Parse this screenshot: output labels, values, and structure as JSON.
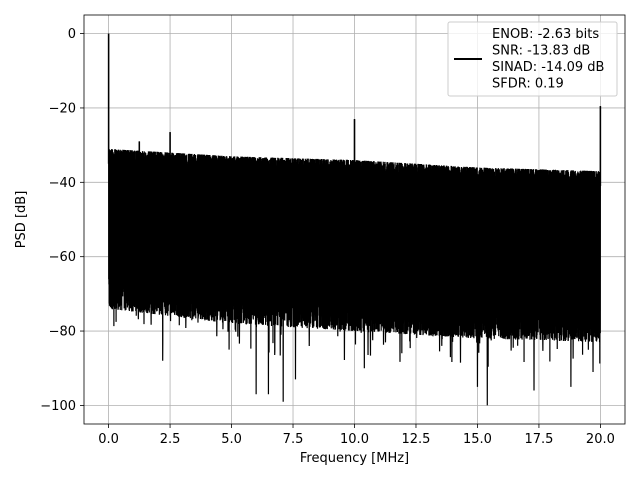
{
  "chart_data": {
    "type": "line",
    "xlabel": "Frequency [MHz]",
    "ylabel": "PSD [dB]",
    "xlim": [
      -1.0,
      21.0
    ],
    "ylim": [
      -105,
      5
    ],
    "xticks": [
      0.0,
      2.5,
      5.0,
      7.5,
      10.0,
      12.5,
      15.0,
      17.5,
      20.0
    ],
    "xtick_labels": [
      "0.0",
      "2.5",
      "5.0",
      "7.5",
      "10.0",
      "12.5",
      "15.0",
      "17.5",
      "20.0"
    ],
    "yticks": [
      0,
      -20,
      -40,
      -60,
      -80,
      -100
    ],
    "ytick_labels": [
      "0",
      "−20",
      "−40",
      "−60",
      "−80",
      "−100"
    ],
    "grid": true,
    "legend_position": "top-right",
    "legend": [
      "ENOB: -2.63 bits",
      "SNR: -13.83 dB",
      "SINAD: -14.09 dB",
      "SFDR: 0.19"
    ],
    "series": [
      {
        "color": "#000000",
        "noise_floor": {
          "x_range": [
            0.0,
            20.0
          ],
          "upper_envelope": [
            [
              0.0,
              -31
            ],
            [
              2.5,
              -32
            ],
            [
              5.0,
              -33
            ],
            [
              10.0,
              -34
            ],
            [
              15.0,
              -36
            ],
            [
              20.0,
              -37
            ]
          ],
          "lower_envelope": [
            [
              0.0,
              -72
            ],
            [
              5.0,
              -76
            ],
            [
              10.0,
              -78
            ],
            [
              15.0,
              -80
            ],
            [
              20.0,
              -81
            ]
          ],
          "deep_dips": [
            [
              2.2,
              -88
            ],
            [
              4.9,
              -85
            ],
            [
              6.0,
              -97
            ],
            [
              6.5,
              -97
            ],
            [
              7.1,
              -99
            ],
            [
              7.6,
              -93
            ],
            [
              10.4,
              -90
            ],
            [
              13.9,
              -87
            ],
            [
              15.0,
              -95
            ],
            [
              15.4,
              -100
            ],
            [
              17.3,
              -96
            ],
            [
              18.8,
              -95
            ],
            [
              19.7,
              -91
            ]
          ]
        },
        "spikes": [
          {
            "x": 0.0,
            "y": 0
          },
          {
            "x": 1.25,
            "y": -29
          },
          {
            "x": 2.5,
            "y": -26.5
          },
          {
            "x": 10.0,
            "y": -23
          },
          {
            "x": 20.0,
            "y": -19.5
          }
        ]
      }
    ]
  }
}
